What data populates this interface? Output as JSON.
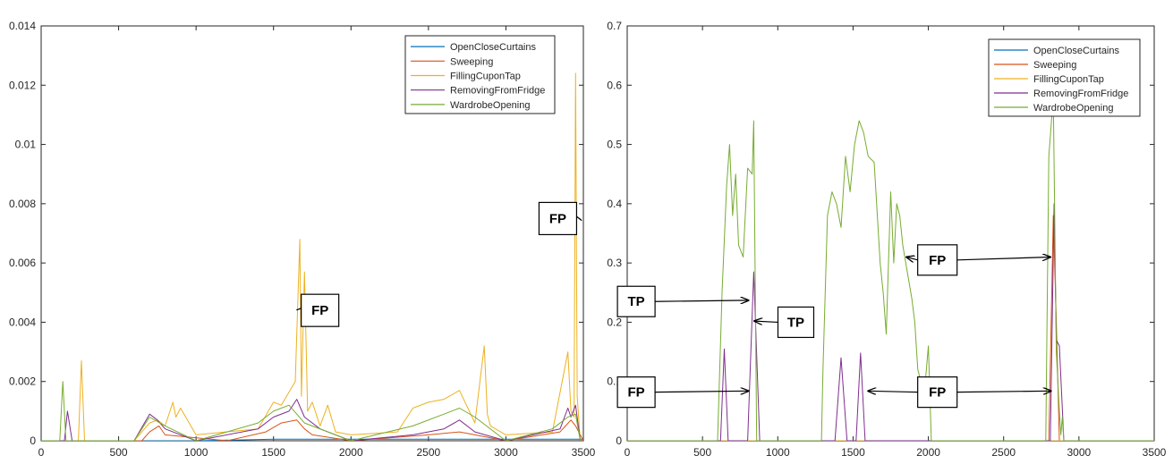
{
  "chart_data": [
    {
      "type": "line",
      "xlim": [
        0,
        3500
      ],
      "ylim": [
        0,
        0.014
      ],
      "xticks": [
        0,
        500,
        1000,
        1500,
        2000,
        2500,
        3000,
        3500
      ],
      "yticks": [
        0,
        0.002,
        0.004,
        0.006,
        0.008,
        0.01,
        0.012,
        0.014
      ],
      "xtick_labels": [
        "0",
        "500",
        "1000",
        "1500",
        "2000",
        "2500",
        "3000",
        "3500"
      ],
      "ytick_labels": [
        "0",
        "0.002",
        "0.004",
        "0.006",
        "0.008",
        "0.01",
        "0.012",
        "0.014"
      ],
      "grid": false,
      "legend_position": "top-right",
      "series": [
        {
          "name": "OpenCloseCurtains",
          "color": "#0072BD",
          "x": [
            0,
            500,
            1000,
            1500,
            2000,
            2500,
            3000,
            3500
          ],
          "y": [
            0,
            0,
            0,
            5e-05,
            5e-05,
            5e-05,
            5e-05,
            5e-05
          ]
        },
        {
          "name": "Sweeping",
          "color": "#D95319",
          "x": [
            0,
            650,
            700,
            760,
            800,
            1200,
            1450,
            1550,
            1650,
            1700,
            1750,
            2000,
            2500,
            2700,
            2800,
            3000,
            3350,
            3420,
            3450,
            3500
          ],
          "y": [
            0,
            0,
            0.0003,
            0.0005,
            0.0002,
            0,
            0.0003,
            0.0006,
            0.0007,
            0.0004,
            0.0002,
            0,
            0.0002,
            0.0003,
            0.0002,
            0,
            0.0003,
            0.0007,
            0.0005,
            0
          ]
        },
        {
          "name": "FillingCuponTap",
          "color": "#EDB120",
          "x": [
            0,
            240,
            260,
            280,
            600,
            700,
            750,
            800,
            850,
            870,
            900,
            1000,
            1400,
            1500,
            1550,
            1640,
            1670,
            1680,
            1700,
            1720,
            1750,
            1800,
            1850,
            1900,
            2000,
            2300,
            2400,
            2500,
            2600,
            2700,
            2800,
            2860,
            2880,
            2900,
            3000,
            3300,
            3400,
            3420,
            3440,
            3450,
            3460,
            3480
          ],
          "y": [
            0,
            0,
            0.0027,
            0,
            0,
            0.0006,
            0.0007,
            0.0005,
            0.0013,
            0.0008,
            0.0011,
            0.0002,
            0.0004,
            0.0013,
            0.0012,
            0.002,
            0.0068,
            0.0015,
            0.0057,
            0.001,
            0.0013,
            0.0005,
            0.0012,
            0.0003,
            0.0002,
            0.0003,
            0.0011,
            0.0013,
            0.0014,
            0.0017,
            0.0006,
            0.0032,
            0.0009,
            0.0005,
            0.0002,
            0.0003,
            0.003,
            0.001,
            0.0008,
            0.0124,
            0.0015,
            0
          ]
        },
        {
          "name": "RemovingFromFridge",
          "color": "#7E2F8E",
          "x": [
            0,
            150,
            170,
            200,
            600,
            700,
            750,
            800,
            1000,
            1400,
            1500,
            1600,
            1650,
            1700,
            1800,
            2000,
            2400,
            2600,
            2700,
            2800,
            3000,
            3350,
            3400,
            3420,
            3450,
            3480
          ],
          "y": [
            0,
            0,
            0.001,
            0,
            0,
            0.0009,
            0.0007,
            0.0004,
            0,
            0.0004,
            0.0008,
            0.001,
            0.0014,
            0.0008,
            0.0004,
            0,
            0.0002,
            0.0004,
            0.0007,
            0.0003,
            0,
            0.0004,
            0.0011,
            0.0008,
            0.0012,
            0
          ]
        },
        {
          "name": "WardrobeOpening",
          "color": "#77AC30",
          "x": [
            0,
            120,
            140,
            160,
            600,
            700,
            800,
            1000,
            1400,
            1500,
            1600,
            1700,
            2000,
            2400,
            2600,
            2700,
            2800,
            3000,
            3300,
            3400,
            3450,
            3480
          ],
          "y": [
            0,
            0,
            0.002,
            0,
            0,
            0.0008,
            0.0005,
            0,
            0.0006,
            0.001,
            0.0012,
            0.0006,
            0,
            0.0005,
            0.0009,
            0.0011,
            0.0008,
            0,
            0.0004,
            0.0008,
            0.0009,
            0
          ]
        }
      ],
      "annotations": [
        {
          "text": "FP",
          "box": [
            3335,
            0.0075
          ],
          "arrow_to": [
            3445,
            0.0076
          ]
        },
        {
          "text": "FP",
          "box": [
            1800,
            0.0044
          ],
          "arrow_to": [
            1700,
            0.0045
          ]
        }
      ]
    },
    {
      "type": "line",
      "xlim": [
        0,
        3500
      ],
      "ylim": [
        0,
        0.7
      ],
      "xticks": [
        0,
        500,
        1000,
        1500,
        2000,
        2500,
        3000,
        3500
      ],
      "yticks": [
        0,
        0.1,
        0.2,
        0.3,
        0.4,
        0.5,
        0.6,
        0.7
      ],
      "xtick_labels": [
        "0",
        "500",
        "1000",
        "1500",
        "2000",
        "2500",
        "3000",
        "3500"
      ],
      "ytick_labels": [
        "0",
        "0.1",
        "0.2",
        "0.3",
        "0.4",
        "0.5",
        "0.6",
        "0.7"
      ],
      "grid": false,
      "legend_position": "top-right",
      "series": [
        {
          "name": "OpenCloseCurtains",
          "color": "#0072BD",
          "x": [
            0,
            3500
          ],
          "y": [
            0,
            0
          ]
        },
        {
          "name": "Sweeping",
          "color": "#D95319",
          "x": [
            0,
            2800,
            2830,
            2850,
            2870,
            3500
          ],
          "y": [
            0,
            0,
            0.38,
            0.2,
            0,
            0
          ]
        },
        {
          "name": "FillingCuponTap",
          "color": "#EDB120",
          "x": [
            0,
            3500
          ],
          "y": [
            0,
            0
          ]
        },
        {
          "name": "RemovingFromFridge",
          "color": "#7E2F8E",
          "x": [
            0,
            620,
            645,
            670,
            800,
            840,
            880,
            1380,
            1420,
            1460,
            1520,
            1550,
            1580,
            2810,
            2835,
            2850,
            2870,
            2900,
            3500
          ],
          "y": [
            0,
            0,
            0.155,
            0,
            0,
            0.285,
            0,
            0,
            0.14,
            0,
            0,
            0.148,
            0,
            0,
            0.4,
            0.17,
            0.16,
            0,
            0
          ]
        },
        {
          "name": "WardrobeOpening",
          "color": "#77AC30",
          "x": [
            0,
            600,
            630,
            660,
            680,
            700,
            720,
            740,
            770,
            800,
            830,
            840,
            860,
            1290,
            1300,
            1330,
            1360,
            1390,
            1420,
            1450,
            1480,
            1510,
            1540,
            1570,
            1600,
            1640,
            1680,
            1700,
            1720,
            1750,
            1770,
            1790,
            1810,
            1830,
            1850,
            1870,
            1890,
            1910,
            1930,
            1950,
            1970,
            2000,
            2020,
            2780,
            2800,
            2830,
            2850,
            2870,
            2880,
            2890,
            2900,
            3500
          ],
          "y": [
            0,
            0,
            0.25,
            0.43,
            0.5,
            0.38,
            0.45,
            0.33,
            0.31,
            0.46,
            0.45,
            0.54,
            0,
            0,
            0.12,
            0.38,
            0.42,
            0.4,
            0.36,
            0.48,
            0.42,
            0.5,
            0.54,
            0.52,
            0.48,
            0.47,
            0.3,
            0.25,
            0.18,
            0.42,
            0.3,
            0.4,
            0.38,
            0.33,
            0.3,
            0.27,
            0.24,
            0.2,
            0.12,
            0.1,
            0.07,
            0.16,
            0,
            0,
            0.48,
            0.58,
            0.15,
            0.05,
            0.01,
            0.04,
            0,
            0
          ]
        }
      ],
      "annotations": [
        {
          "text": "FP",
          "box": [
            2060,
            0.305
          ],
          "arrow_to": [
            1855,
            0.31
          ]
        },
        {
          "text": "FP",
          "box": [
            2060,
            0.305
          ],
          "arrow_to": [
            2810,
            0.31
          ]
        },
        {
          "text": "TP",
          "box": [
            60,
            0.235
          ],
          "arrow_to": [
            805,
            0.237
          ]
        },
        {
          "text": "TP",
          "box": [
            1120,
            0.2
          ],
          "arrow_to": [
            845,
            0.202
          ]
        },
        {
          "text": "FP",
          "box": [
            60,
            0.082
          ],
          "arrow_to": [
            805,
            0.084
          ]
        },
        {
          "text": "FP",
          "box": [
            2060,
            0.082
          ],
          "arrow_to": [
            1600,
            0.084
          ]
        },
        {
          "text": "FP",
          "box": [
            2060,
            0.082
          ],
          "arrow_to": [
            2815,
            0.084
          ]
        }
      ]
    }
  ]
}
